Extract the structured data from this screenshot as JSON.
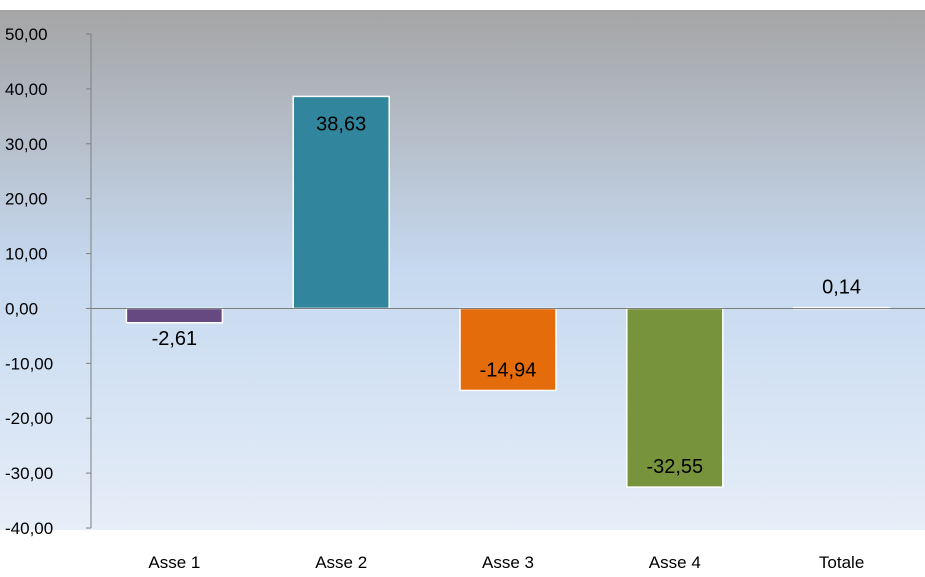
{
  "chart_data": {
    "type": "bar",
    "categories": [
      "Asse 1",
      "Asse 2",
      "Asse 3",
      "Asse 4",
      "Totale"
    ],
    "values": [
      -2.61,
      38.63,
      -14.94,
      -32.55,
      0.14
    ],
    "data_labels": [
      "-2,61",
      "38,63",
      "-14,94",
      "-32,55",
      "0,14"
    ],
    "bar_colors": [
      "#664980",
      "#31859c",
      "#e46c0a",
      "#77933c",
      "#ffffff"
    ],
    "ylim": [
      -40,
      50
    ],
    "y_ticks": [
      50,
      40,
      30,
      20,
      10,
      0,
      -10,
      -20,
      -30,
      -40
    ],
    "y_tick_labels": [
      "50,00",
      "40,00",
      "30,00",
      "20,00",
      "10,00",
      "0,00",
      "-10,00",
      "-20,00",
      "-30,00",
      "-40,00"
    ],
    "grid": false,
    "background_gradient": [
      "#a5a5a5",
      "#c6d9f0",
      "#e6eef8"
    ]
  }
}
